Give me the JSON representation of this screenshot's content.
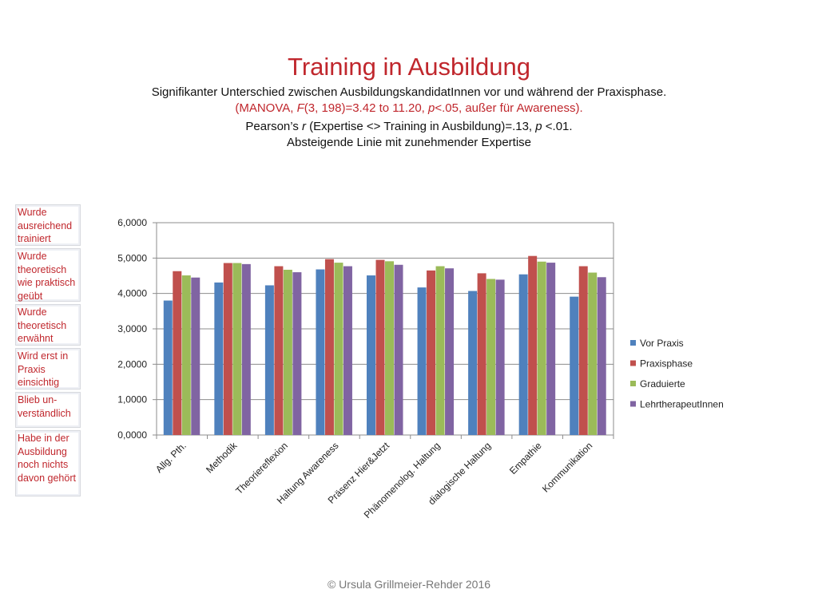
{
  "slide": {
    "title": "Training in Ausbildung",
    "subtitle_line1": "Signifikanter Unterschied zwischen AusbildungskandidatInnen vor und während der Praxisphase.",
    "subtitle_line2": {
      "a": "(MANOVA, ",
      "b": "F",
      "c": "(3, 198)=3.42 to 11.20, ",
      "d": "p",
      "e": "<.05, außer für Awareness)."
    },
    "subtitle_line3": {
      "a": "Pearson’s ",
      "b": "r",
      "c": " (Expertise <> Training in Ausbildung)=.13, ",
      "d": "p",
      "e": " <.01."
    },
    "subtitle_line4": "Absteigende Linie mit zunehmender Expertise",
    "footer": "© Ursula Grillmeier-Rehder 2016"
  },
  "scale_labels": [
    "Wurde ausreichend trainiert",
    "Wurde theoretisch wie praktisch geübt",
    "Wurde theoretisch erwähnt",
    "Wird erst in Praxis einsichtig",
    "Blieb un-verständlich",
    "Habe in der Ausbildung noch nichts davon gehört"
  ],
  "colors": {
    "title": "#c0272d",
    "series": [
      "#4f81bd",
      "#c0504d",
      "#9bbb59",
      "#8064a2"
    ]
  },
  "chart_data": {
    "type": "bar",
    "categories": [
      "Allg. Pth.",
      "Methodik",
      "Theoriereflexion",
      "Haltung Awareness",
      "Präsenz Hier&Jetzt",
      "Phänomenolog. Haltung",
      "dialogische Haltung",
      "Empathie",
      "Kommunikation"
    ],
    "series": [
      {
        "name": "Vor Praxis",
        "values": [
          3.8,
          4.31,
          4.23,
          4.68,
          4.51,
          4.17,
          4.07,
          4.54,
          3.91
        ]
      },
      {
        "name": "Praxisphase",
        "values": [
          4.63,
          4.86,
          4.77,
          4.97,
          4.95,
          4.65,
          4.57,
          5.06,
          4.77
        ]
      },
      {
        "name": "Graduierte",
        "values": [
          4.51,
          4.86,
          4.67,
          4.87,
          4.91,
          4.77,
          4.41,
          4.9,
          4.59
        ]
      },
      {
        "name": "LehrtherapeutInnen",
        "values": [
          4.45,
          4.83,
          4.6,
          4.77,
          4.81,
          4.71,
          4.39,
          4.87,
          4.46
        ]
      }
    ],
    "yticks": [
      "0,0000",
      "1,0000",
      "2,0000",
      "3,0000",
      "4,0000",
      "5,0000",
      "6,0000"
    ],
    "ylim": [
      0,
      6
    ],
    "grid": true,
    "legend": "right"
  }
}
